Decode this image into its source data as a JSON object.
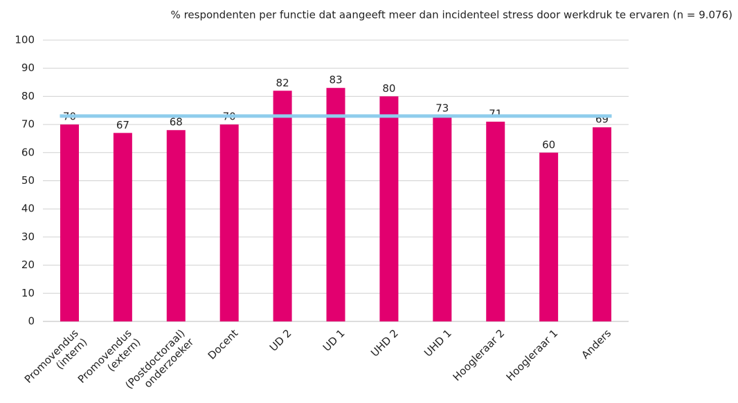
{
  "chart_data": {
    "type": "bar",
    "title": "% respondenten per functie dat aangeeft meer dan incidenteel stress door werkdruk te ervaren (n = 9.076)",
    "categories": [
      "Promovendus\n(intern)",
      "Promovendus\n(extern)",
      "(Postdoctoraal)\nonderzoeker",
      "Docent",
      "UD 2",
      "UD 1",
      "UHD 2",
      "UHD 1",
      "Hoogleraar 2",
      "Hoogleraar 1",
      "Anders"
    ],
    "values": [
      70,
      67,
      68,
      70,
      82,
      83,
      80,
      73,
      71,
      60,
      69
    ],
    "color": "#e2006f",
    "reference_line": {
      "value": 73,
      "color": "#8fcdec"
    },
    "ylim": [
      0,
      100
    ],
    "yticks": [
      0,
      10,
      20,
      30,
      40,
      50,
      60,
      70,
      80,
      90,
      100
    ],
    "grid": true
  }
}
